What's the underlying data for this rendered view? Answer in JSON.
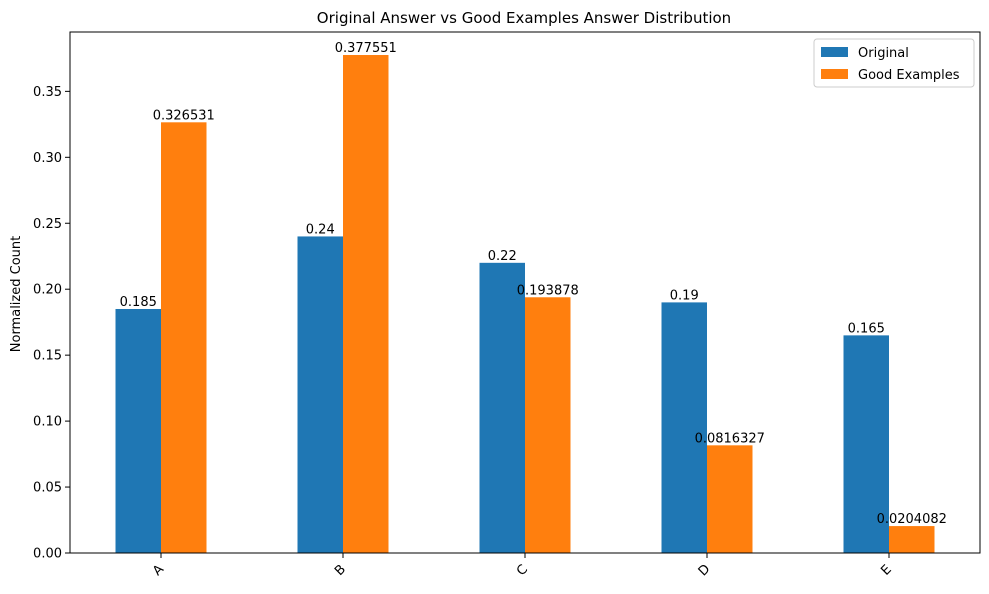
{
  "chart_data": {
    "type": "bar",
    "title": "Original Answer vs Good Examples Answer Distribution",
    "xlabel": "",
    "ylabel": "Normalized Count",
    "categories": [
      "A",
      "B",
      "C",
      "D",
      "E"
    ],
    "series": [
      {
        "name": "Original",
        "color": "#1f77b4",
        "values": [
          0.185,
          0.24,
          0.22,
          0.19,
          0.165
        ],
        "labels": [
          "0.185",
          "0.24",
          "0.22",
          "0.19",
          "0.165"
        ]
      },
      {
        "name": "Good Examples",
        "color": "#ff7f0e",
        "values": [
          0.326531,
          0.377551,
          0.193878,
          0.0816327,
          0.0204082
        ],
        "labels": [
          "0.326531",
          "0.377551",
          "0.193878",
          "0.0816327",
          "0.0204082"
        ]
      }
    ],
    "ylim": [
      0,
      0.395
    ],
    "yticks": [
      0.0,
      0.05,
      0.1,
      0.15,
      0.2,
      0.25,
      0.3,
      0.35
    ],
    "ytick_labels": [
      "0.00",
      "0.05",
      "0.10",
      "0.15",
      "0.20",
      "0.25",
      "0.30",
      "0.35"
    ],
    "xtick_rotation": -45,
    "grid": false,
    "legend_position": "top-right"
  }
}
